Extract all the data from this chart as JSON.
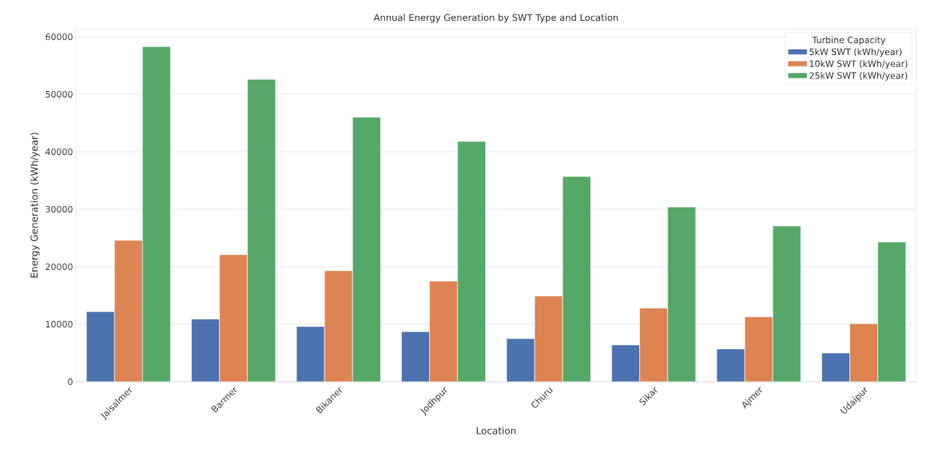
{
  "chart_data": {
    "type": "bar",
    "title": "Annual Energy Generation by SWT Type and Location",
    "xlabel": "Location",
    "ylabel": "Energy Generation (kWh/year)",
    "legend_title": "Turbine Capacity",
    "categories": [
      "Jaisalmer",
      "Barmer",
      "Bikaner",
      "Jodhpur",
      "Churu",
      "Sikar",
      "Ajmer",
      "Udaipur"
    ],
    "series": [
      {
        "name": "5kW SWT (kWh/year)",
        "color": "#4c72b0",
        "values": [
          12200,
          10900,
          9600,
          8700,
          7500,
          6400,
          5700,
          5000
        ]
      },
      {
        "name": "10kW SWT (kWh/year)",
        "color": "#dd8452",
        "values": [
          24600,
          22100,
          19300,
          17500,
          14900,
          12800,
          11300,
          10100
        ]
      },
      {
        "name": "25kW SWT (kWh/year)",
        "color": "#55a868",
        "values": [
          58300,
          52600,
          46000,
          41800,
          35700,
          30400,
          27100,
          24300
        ]
      }
    ],
    "ylim": [
      0,
      61400
    ],
    "yticks": [
      0,
      10000,
      20000,
      30000,
      40000,
      50000,
      60000
    ],
    "grid": "y",
    "legend": "top right"
  }
}
